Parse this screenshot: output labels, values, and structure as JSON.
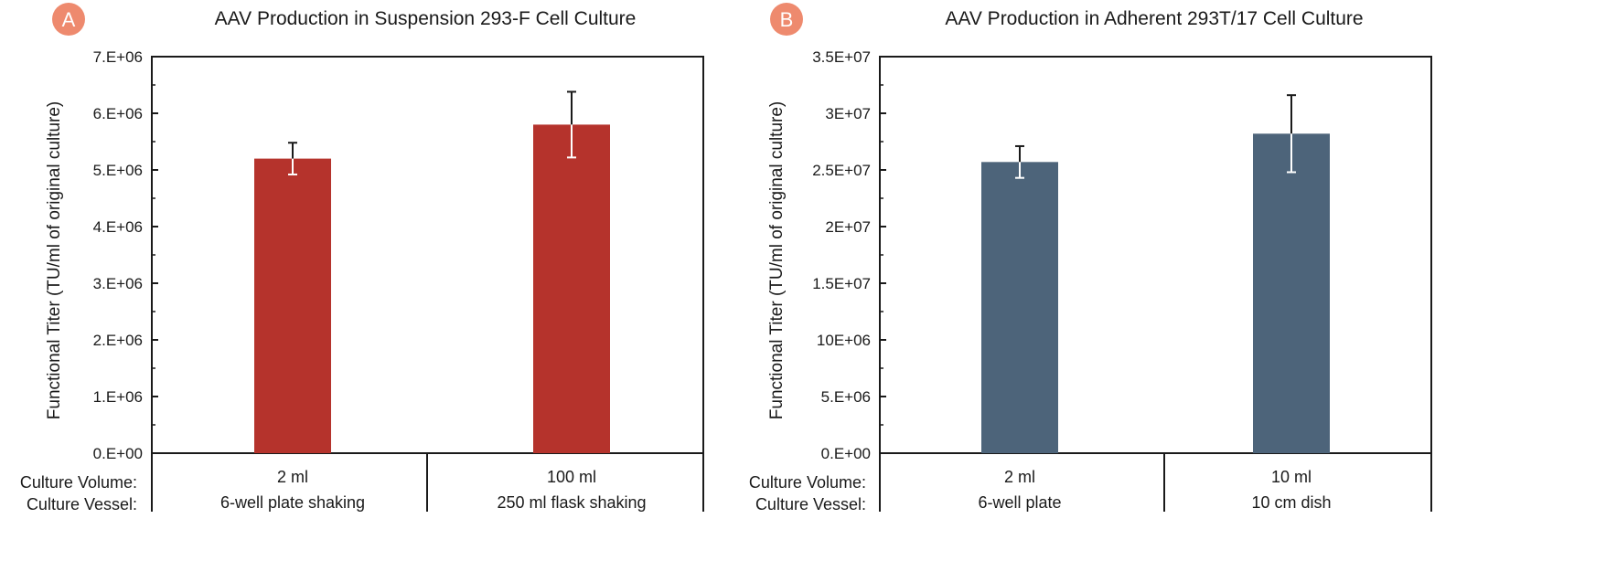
{
  "colors": {
    "badge": "#ee8a6e",
    "bar_a": "#b5332c",
    "bar_b": "#4d647a",
    "axis": "#1a1a1a"
  },
  "chart_data": [
    {
      "badge": "A",
      "type": "bar",
      "title": "AAV Production in Suspension 293-F Cell Culture",
      "ylabel": "Functional  Titer (TU/ml of original culture)",
      "ylim": [
        0,
        7000000
      ],
      "yticks": [
        0,
        1000000,
        2000000,
        3000000,
        4000000,
        5000000,
        6000000,
        7000000
      ],
      "ytick_labels": [
        "0.E+00",
        "1.E+06",
        "2.E+06",
        "3.E+06",
        "4.E+06",
        "5.E+06",
        "6.E+06",
        "7.E+06"
      ],
      "row_labels": [
        "Culture Volume:",
        "Culture Vessel:"
      ],
      "categories": [
        {
          "volume": "2 ml",
          "vessel": "6-well plate shaking"
        },
        {
          "volume": "100 ml",
          "vessel": "250 ml flask shaking"
        }
      ],
      "values": [
        5200000,
        5800000
      ],
      "errors": [
        280000,
        580000
      ]
    },
    {
      "badge": "B",
      "type": "bar",
      "title": "AAV Production in Adherent 293T/17 Cell Culture",
      "ylabel": "Functional  Titer (TU/ml of original culture)",
      "ylim": [
        0,
        35000000
      ],
      "yticks": [
        0,
        5000000,
        10000000,
        15000000,
        20000000,
        25000000,
        30000000,
        35000000
      ],
      "ytick_labels": [
        "0.E+00",
        "5.E+06",
        "10E+06",
        "1.5E+07",
        "2E+07",
        "2.5E+07",
        "3E+07",
        "3.5E+07"
      ],
      "row_labels": [
        "Culture Volume:",
        "Culture Vessel:"
      ],
      "categories": [
        {
          "volume": "2 ml",
          "vessel": "6-well plate"
        },
        {
          "volume": "10 ml",
          "vessel": "10 cm dish"
        }
      ],
      "values": [
        25700000,
        28200000
      ],
      "errors": [
        1400000,
        3400000
      ]
    }
  ]
}
